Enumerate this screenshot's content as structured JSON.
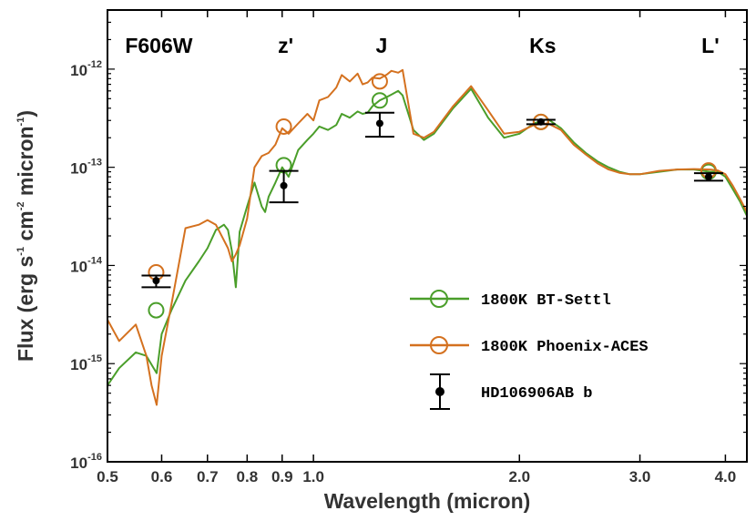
{
  "chart_data": {
    "type": "line",
    "xscale": "log",
    "yscale": "log",
    "xlim": [
      0.5,
      4.3
    ],
    "ylim": [
      1e-16,
      4e-12
    ],
    "xlabel": "Wavelength (micron)",
    "ylabel": {
      "parts": [
        "Flux (erg s",
        "-1",
        " cm",
        "-2",
        " micron",
        "-1",
        ")"
      ]
    },
    "x_ticks": [
      {
        "value": 0.5,
        "label": "0.5"
      },
      {
        "value": 0.6,
        "label": "0.6"
      },
      {
        "value": 0.7,
        "label": "0.7"
      },
      {
        "value": 0.8,
        "label": "0.8"
      },
      {
        "value": 0.9,
        "label": "0.9"
      },
      {
        "value": 1.0,
        "label": "1.0"
      },
      {
        "value": 2.0,
        "label": "2.0"
      },
      {
        "value": 3.0,
        "label": "3.0"
      },
      {
        "value": 4.0,
        "label": "4.0"
      }
    ],
    "y_ticks": [
      {
        "value": 1e-16,
        "base": "10",
        "exp": "-16"
      },
      {
        "value": 1e-15,
        "base": "10",
        "exp": "-15"
      },
      {
        "value": 1e-14,
        "base": "10",
        "exp": "-14"
      },
      {
        "value": 1e-13,
        "base": "10",
        "exp": "-13"
      },
      {
        "value": 1e-12,
        "base": "10",
        "exp": "-12"
      }
    ],
    "band_labels": [
      {
        "label": "F606W",
        "x": 0.58
      },
      {
        "label": "z'",
        "x": 0.905
      },
      {
        "label": "J",
        "x": 1.25
      },
      {
        "label": "Ks",
        "x": 2.15
      },
      {
        "label": "L'",
        "x": 3.78
      }
    ],
    "series": [
      {
        "name": "1800K BT-Settl",
        "color": "#4a9e2a",
        "line_x": [
          0.5,
          0.52,
          0.55,
          0.57,
          0.59,
          0.6,
          0.62,
          0.65,
          0.68,
          0.7,
          0.72,
          0.74,
          0.75,
          0.76,
          0.77,
          0.78,
          0.8,
          0.82,
          0.84,
          0.85,
          0.86,
          0.88,
          0.9,
          0.92,
          0.95,
          0.98,
          1.0,
          1.02,
          1.05,
          1.08,
          1.1,
          1.13,
          1.16,
          1.18,
          1.2,
          1.22,
          1.25,
          1.28,
          1.3,
          1.33,
          1.35,
          1.4,
          1.45,
          1.5,
          1.6,
          1.7,
          1.8,
          1.9,
          2.0,
          2.1,
          2.2,
          2.3,
          2.4,
          2.5,
          2.6,
          2.7,
          2.8,
          2.9,
          3.0,
          3.2,
          3.4,
          3.6,
          3.8,
          3.9,
          4.0,
          4.1,
          4.2,
          4.3
        ],
        "line_y": [
          6e-16,
          9e-16,
          1.3e-15,
          1.2e-15,
          8e-16,
          2e-15,
          3.5e-15,
          7e-15,
          1.1e-14,
          1.5e-14,
          2.3e-14,
          2.6e-14,
          2.3e-14,
          1.4e-14,
          6e-15,
          2.2e-14,
          4e-14,
          7e-14,
          4e-14,
          3.5e-14,
          5e-14,
          7e-14,
          1e-13,
          8e-14,
          1.5e-13,
          1.9e-13,
          2.2e-13,
          2.6e-13,
          2.4e-13,
          2.7e-13,
          3.5e-13,
          3.2e-13,
          3.7e-13,
          3.5e-13,
          3.6e-13,
          4.2e-13,
          4.8e-13,
          5.2e-13,
          5.5e-13,
          6e-13,
          5.4e-13,
          2.4e-13,
          1.9e-13,
          2.2e-13,
          4e-13,
          6.3e-13,
          3.2e-13,
          2e-13,
          2.2e-13,
          2.8e-13,
          3.1e-13,
          2.5e-13,
          1.8e-13,
          1.4e-13,
          1.15e-13,
          1e-13,
          9e-14,
          8.5e-14,
          8.5e-14,
          9e-14,
          9.5e-14,
          9.5e-14,
          9e-14,
          9e-14,
          8e-14,
          6e-14,
          4.5e-14,
          3.2e-14
        ],
        "points": [
          {
            "x": 0.589,
            "y": 3.5e-15
          },
          {
            "x": 0.905,
            "y": 1.05e-13
          },
          {
            "x": 1.25,
            "y": 4.8e-13
          },
          {
            "x": 2.15,
            "y": 2.9e-13
          },
          {
            "x": 3.78,
            "y": 9e-14
          }
        ]
      },
      {
        "name": "1800K Phoenix-ACES",
        "color": "#d4711f",
        "line_x": [
          0.5,
          0.52,
          0.55,
          0.57,
          0.58,
          0.59,
          0.6,
          0.62,
          0.65,
          0.68,
          0.7,
          0.72,
          0.74,
          0.75,
          0.76,
          0.77,
          0.78,
          0.8,
          0.82,
          0.84,
          0.86,
          0.88,
          0.9,
          0.92,
          0.95,
          0.98,
          1.0,
          1.02,
          1.05,
          1.08,
          1.1,
          1.13,
          1.16,
          1.18,
          1.2,
          1.22,
          1.25,
          1.28,
          1.3,
          1.33,
          1.35,
          1.4,
          1.45,
          1.5,
          1.6,
          1.7,
          1.8,
          1.9,
          2.0,
          2.1,
          2.2,
          2.3,
          2.4,
          2.5,
          2.6,
          2.7,
          2.8,
          2.9,
          3.0,
          3.2,
          3.4,
          3.6,
          3.8,
          3.9,
          4.0,
          4.1,
          4.2,
          4.3
        ],
        "line_y": [
          2.8e-15,
          1.7e-15,
          2.5e-15,
          1.2e-15,
          6e-16,
          3.8e-16,
          1.2e-15,
          4e-15,
          2.4e-14,
          2.6e-14,
          2.9e-14,
          2.6e-14,
          1.8e-14,
          1.5e-14,
          1.1e-14,
          1.3e-14,
          1.6e-14,
          3e-14,
          1e-13,
          1.3e-13,
          1.4e-13,
          1.7e-13,
          2.5e-13,
          2.2e-13,
          2.8e-13,
          3.5e-13,
          3e-13,
          4.8e-13,
          5.2e-13,
          6.5e-13,
          8.7e-13,
          7.5e-13,
          9e-13,
          7e-13,
          7.3e-13,
          8.2e-13,
          8e-13,
          8.8e-13,
          9.6e-13,
          9.2e-13,
          9.8e-13,
          2.2e-13,
          2e-13,
          2.3e-13,
          4.2e-13,
          6.7e-13,
          3.8e-13,
          2.2e-13,
          2.3e-13,
          2.7e-13,
          2.8e-13,
          2.4e-13,
          1.7e-13,
          1.35e-13,
          1.1e-13,
          9.5e-14,
          8.8e-14,
          8.5e-14,
          8.5e-14,
          9.2e-14,
          9.5e-14,
          9.6e-14,
          9.5e-14,
          9.3e-14,
          8.5e-14,
          6.5e-14,
          4.8e-14,
          3.5e-14
        ],
        "points": [
          {
            "x": 0.589,
            "y": 8.5e-15
          },
          {
            "x": 0.905,
            "y": 2.6e-13
          },
          {
            "x": 1.25,
            "y": 7.5e-13
          },
          {
            "x": 2.15,
            "y": 2.9e-13
          },
          {
            "x": 3.78,
            "y": 9.3e-14
          }
        ]
      },
      {
        "name": "HD106906AB b",
        "color": "#000000",
        "points": [
          {
            "x": 0.589,
            "y": 7e-15,
            "ylo": 6e-15,
            "yhi": 7.9e-15
          },
          {
            "x": 0.905,
            "y": 6.5e-14,
            "ylo": 4.4e-14,
            "yhi": 9.2e-14
          },
          {
            "x": 1.25,
            "y": 2.8e-13,
            "ylo": 2.05e-13,
            "yhi": 3.6e-13
          },
          {
            "x": 2.15,
            "y": 2.9e-13,
            "ylo": 2.75e-13,
            "yhi": 3.05e-13
          },
          {
            "x": 3.78,
            "y": 8e-14,
            "ylo": 7.3e-14,
            "yhi": 8.7e-14
          }
        ]
      }
    ],
    "legend": [
      {
        "label": "1800K BT-Settl",
        "color": "#4a9e2a",
        "kind": "line-circle"
      },
      {
        "label": "1800K Phoenix-ACES",
        "color": "#d4711f",
        "kind": "line-circle"
      },
      {
        "label": "HD106906AB b",
        "color": "#000000",
        "kind": "errorbar"
      }
    ],
    "legend_position": "lower-right"
  }
}
